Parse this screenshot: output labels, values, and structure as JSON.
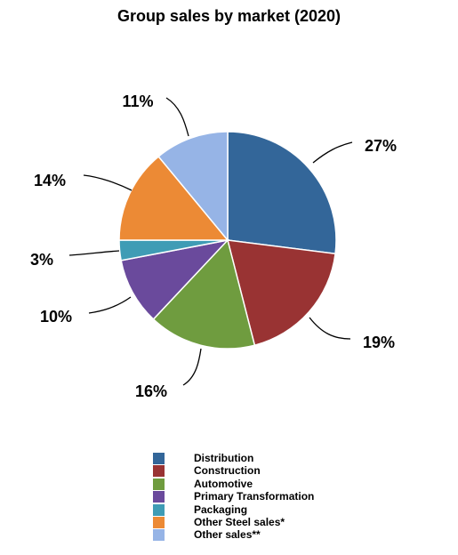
{
  "chart_data": {
    "type": "pie",
    "title": "Group sales by market (2020)",
    "series": [
      {
        "name": "Distribution",
        "value": 27,
        "label": "27%",
        "color": "#336699"
      },
      {
        "name": "Construction",
        "value": 19,
        "label": "19%",
        "color": "#993333"
      },
      {
        "name": "Automotive",
        "value": 16,
        "label": "16%",
        "color": "#6f9c3f"
      },
      {
        "name": "Primary Transformation",
        "value": 10,
        "label": "10%",
        "color": "#6a4a9c"
      },
      {
        "name": "Packaging",
        "value": 3,
        "label": "3%",
        "color": "#3f9cb5"
      },
      {
        "name": "Other Steel sales*",
        "value": 14,
        "label": "14%",
        "color": "#ec8a35"
      },
      {
        "name": "Other sales**",
        "value": 11,
        "label": "11%",
        "color": "#96b4e6"
      }
    ],
    "legend_position": "bottom"
  }
}
